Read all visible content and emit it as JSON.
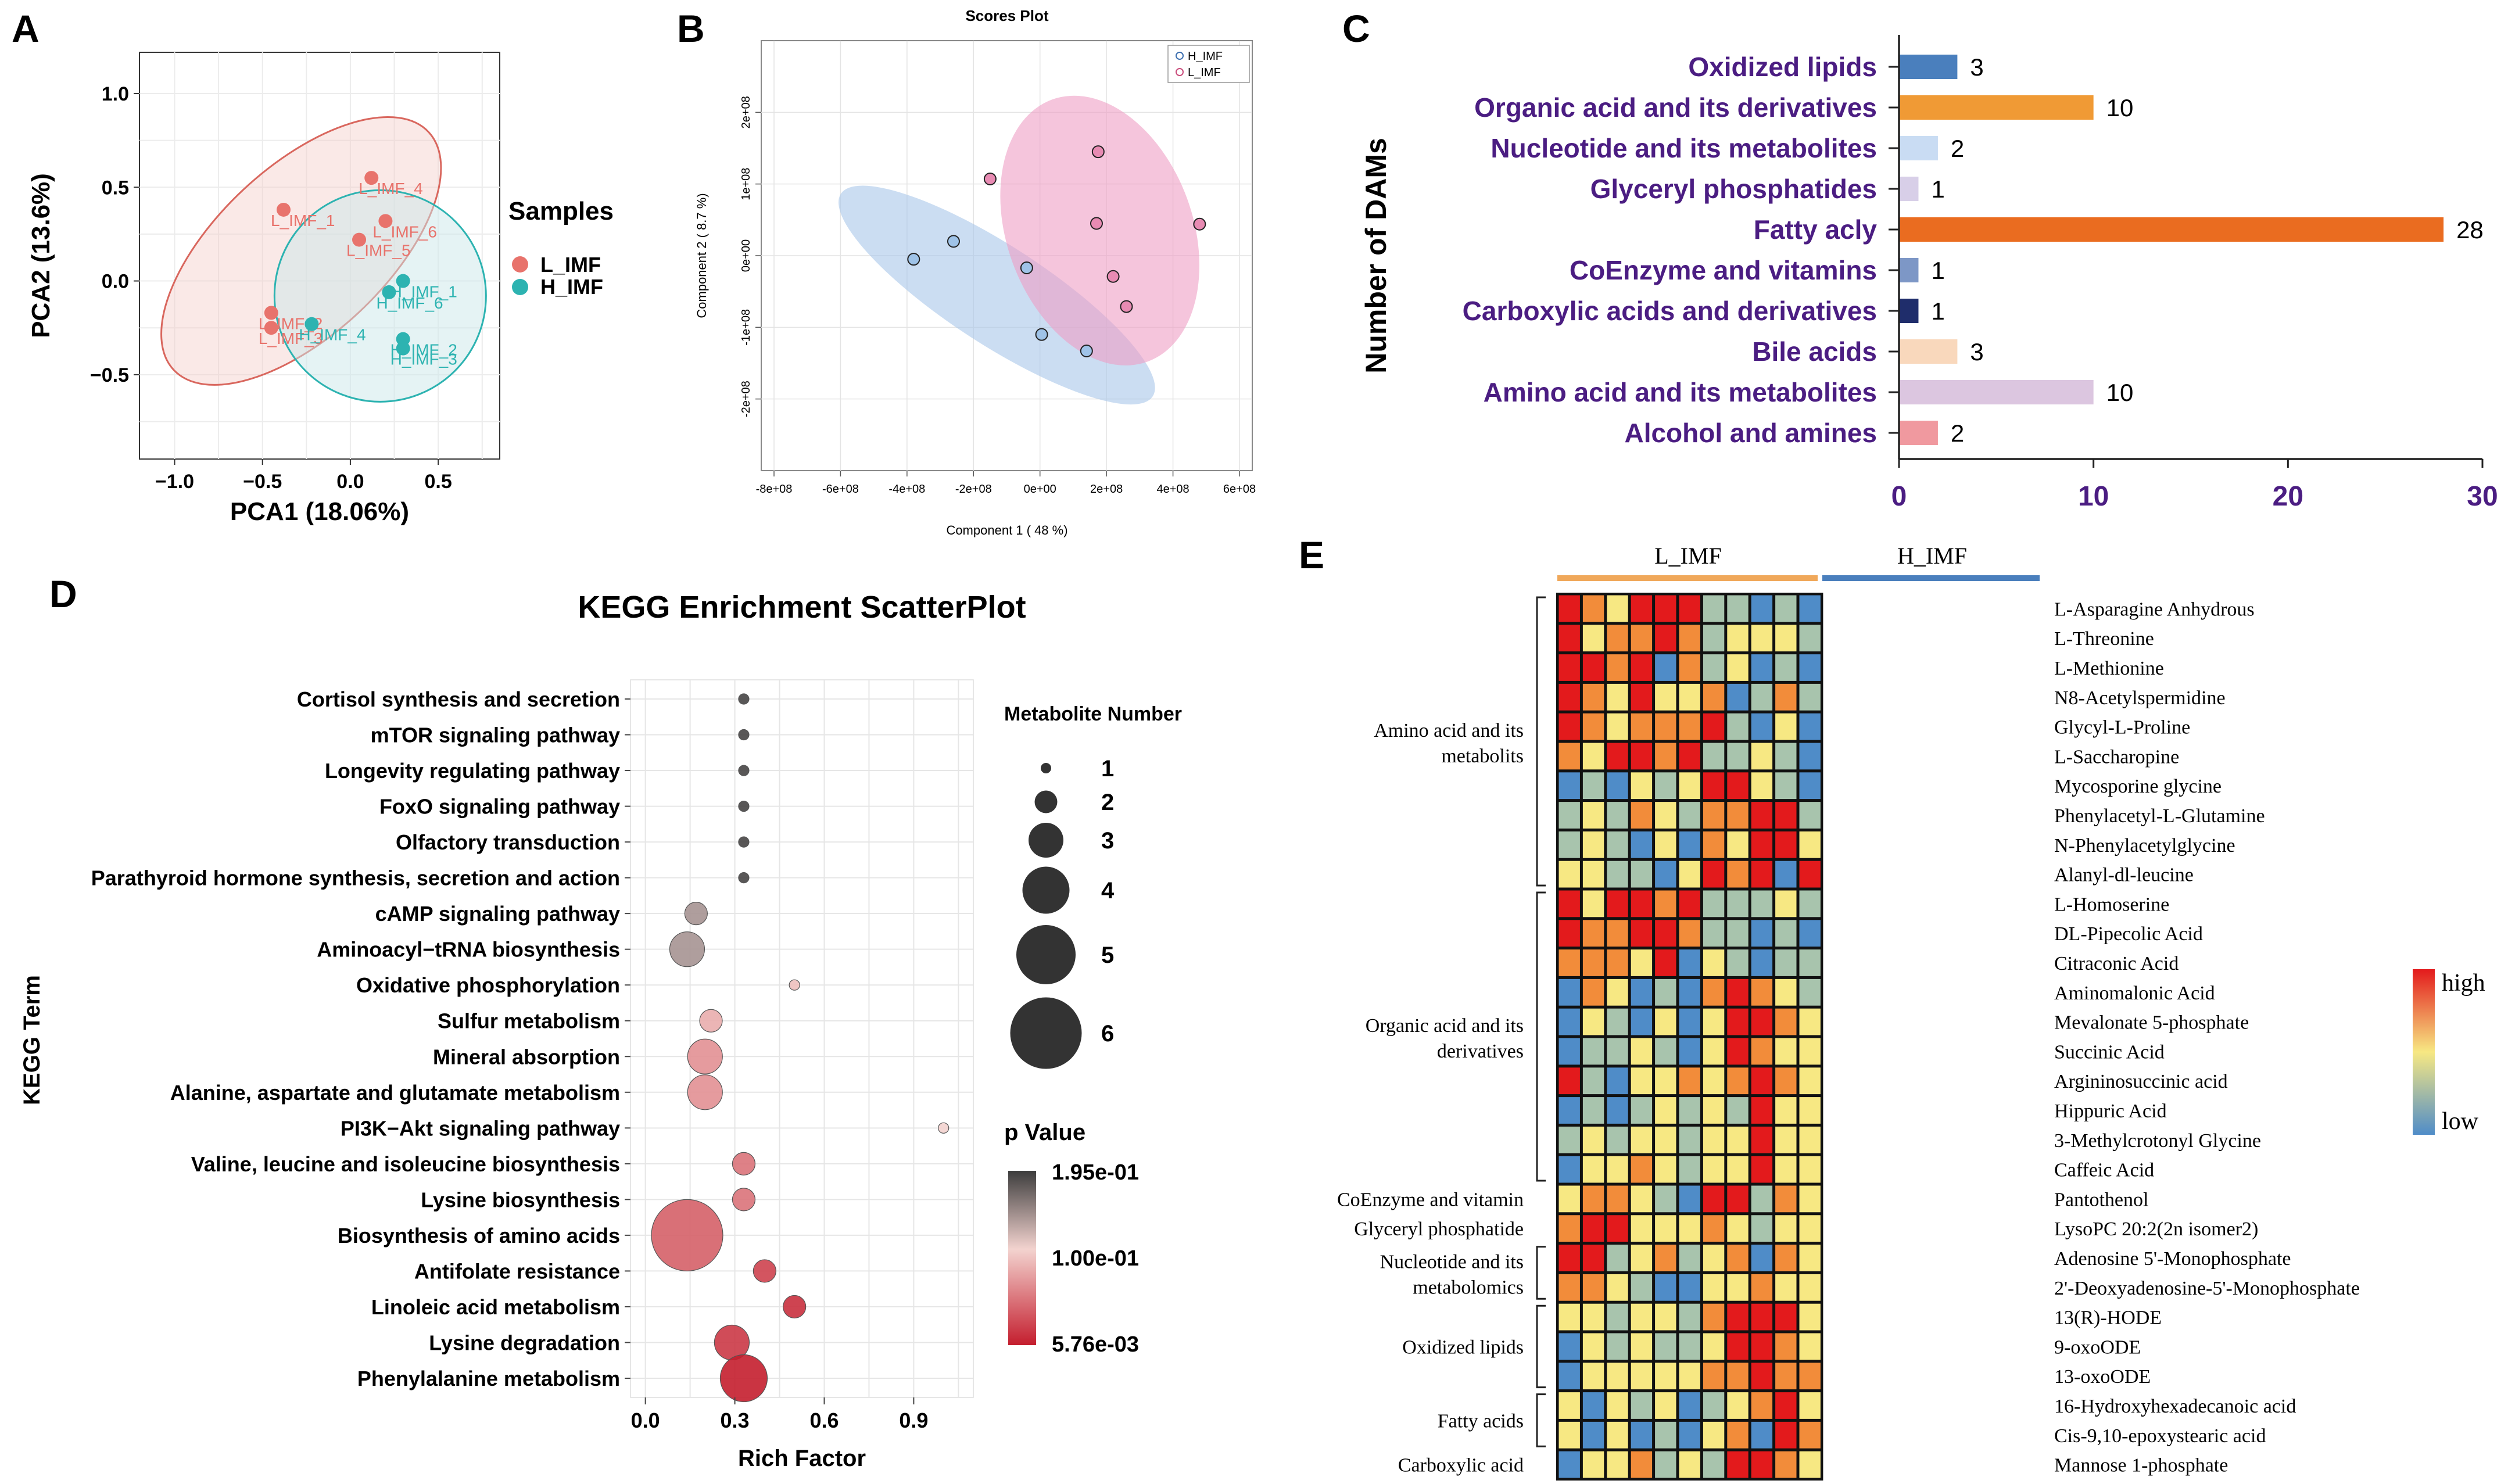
{
  "panel_labels": [
    "A",
    "B",
    "C",
    "D",
    "E"
  ],
  "chart_data": [
    {
      "panel": "A",
      "type": "scatter",
      "xlabel": "PCA1 (18.06%)",
      "ylabel": "PCA2 (13.6%)",
      "xlim": [
        -1.2,
        0.85
      ],
      "ylim": [
        -0.95,
        1.22
      ],
      "xticks": [
        "−1.0",
        "−0.5",
        "0.0",
        "0.5"
      ],
      "xtick_values": [
        -1.0,
        -0.5,
        0.0,
        0.5
      ],
      "yticks": [
        "1.0",
        "0.5",
        "0.0",
        "−0.5"
      ],
      "ytick_values": [
        1.0,
        0.5,
        0.0,
        -0.5
      ],
      "legend_title": "Samples",
      "series": [
        {
          "name": "L_IMF",
          "color": "#e8736c",
          "points": [
            {
              "label": "L_IMF_1",
              "x": -0.38,
              "y": 0.38
            },
            {
              "label": "L_IMF_4",
              "x": 0.12,
              "y": 0.55
            },
            {
              "label": "L_IMF_6",
              "x": 0.2,
              "y": 0.32
            },
            {
              "label": "L_IMF_5",
              "x": 0.05,
              "y": 0.22
            },
            {
              "label": "L_IMF_2",
              "x": -0.45,
              "y": -0.17
            },
            {
              "label": "L_IMF_3",
              "x": -0.45,
              "y": -0.25
            }
          ]
        },
        {
          "name": "H_IMF",
          "color": "#2db3b1",
          "points": [
            {
              "label": "H_IMF_1",
              "x": 0.3,
              "y": 0.0
            },
            {
              "label": "H_IMF_6",
              "x": 0.22,
              "y": -0.06
            },
            {
              "label": "H_IMF_4",
              "x": -0.22,
              "y": -0.23
            },
            {
              "label": "H_IMF_2",
              "x": 0.3,
              "y": -0.31
            },
            {
              "label": "H_IMF_3",
              "x": 0.3,
              "y": -0.36
            }
          ]
        }
      ]
    },
    {
      "panel": "B",
      "type": "scatter",
      "title": "Scores Plot",
      "xlabel": "Component 1 ( 48 %)",
      "ylabel": "Component 2 ( 8.7 %)",
      "xlim": [
        -800000000.0,
        600000000.0
      ],
      "ylim": [
        -300000000.0,
        300000000.0
      ],
      "xticks": [
        "-8e+08",
        "-6e+08",
        "-4e+08",
        "-2e+08",
        "0e+00",
        "2e+08",
        "4e+08",
        "6e+08"
      ],
      "xtick_values": [
        -800000000.0,
        -600000000.0,
        -400000000.0,
        -200000000.0,
        0,
        200000000.0,
        400000000.0,
        600000000.0
      ],
      "yticks": [
        "2e+08",
        "1e+08",
        "0e+00",
        "-1e+08",
        "-2e+08"
      ],
      "ytick_values": [
        200000000.0,
        100000000.0,
        0,
        -100000000.0,
        -200000000.0
      ],
      "series": [
        {
          "name": "H_IMF",
          "color": "#3d6fb0",
          "points": [
            [
              -380000000.0,
              -5000000.0
            ],
            [
              -260000000.0,
              20000000.0
            ],
            [
              -40000000.0,
              -17000000.0
            ],
            [
              5000000.0,
              -110000000.0
            ],
            [
              140000000.0,
              -133000000.0
            ]
          ]
        },
        {
          "name": "L_IMF",
          "color": "#c94a7a",
          "points": [
            [
              -150000000.0,
              107000000.0
            ],
            [
              175000000.0,
              145000000.0
            ],
            [
              170000000.0,
              45000000.0
            ],
            [
              480000000.0,
              44000000.0
            ],
            [
              220000000.0,
              -29000000.0
            ],
            [
              260000000.0,
              -71000000.0
            ]
          ]
        }
      ]
    },
    {
      "panel": "C",
      "type": "bar",
      "orientation": "horizontal",
      "ylabel": "Number of DAMs",
      "xlim": [
        0,
        30
      ],
      "xticks": [
        "0",
        "10",
        "20",
        "30"
      ],
      "xtick_values": [
        0,
        10,
        20,
        30
      ],
      "categories": [
        "Oxidized lipids",
        "Organic acid and  its derivatives",
        "Nucleotide and  its metabolites",
        "Glyceryl phosphatides",
        "Fatty acly",
        "CoEnzyme and vitamins",
        "Carboxylic acids and derivatives",
        "Bile acids",
        "Amino acid  and its metabolites",
        "Alcohol and amines"
      ],
      "values": [
        3,
        10,
        2,
        1,
        28,
        1,
        1,
        3,
        10,
        2
      ],
      "colors": [
        "#4a7fbd",
        "#f09a35",
        "#c9dcf3",
        "#d8cfe8",
        "#ea6c20",
        "#7d97c6",
        "#1f2d6b",
        "#f9d8bc",
        "#dcc6e0",
        "#f0999f"
      ]
    },
    {
      "panel": "D",
      "type": "scatter",
      "title": "KEGG Enrichment ScatterPlot",
      "xlabel": "Rich Factor",
      "ylabel": "KEGG Term",
      "xlim": [
        -0.05,
        1.1
      ],
      "xticks": [
        "0.0",
        "0.3",
        "0.6",
        "0.9"
      ],
      "xtick_values": [
        0.0,
        0.3,
        0.6,
        0.9
      ],
      "size_legend_title": "Metabolite Number",
      "size_legend": [
        "1",
        "2",
        "3",
        "4",
        "5",
        "6"
      ],
      "color_legend_title": "p Value",
      "color_legend_labels": [
        "1.95e-01",
        "1.00e-01",
        "5.76e-03"
      ],
      "terms": [
        "Cortisol synthesis and secretion",
        "mTOR signaling pathway",
        "Longevity regulating pathway",
        "FoxO signaling pathway",
        "Olfactory transduction",
        "Parathyroid hormone synthesis, secretion and action",
        "cAMP signaling pathway",
        "Aminoacyl−tRNA biosynthesis",
        "Oxidative phosphorylation",
        "Sulfur metabolism",
        "Mineral absorption",
        "Alanine, aspartate and glutamate metabolism",
        "PI3K−Akt signaling pathway",
        "Valine, leucine and isoleucine biosynthesis",
        "Lysine biosynthesis",
        "Biosynthesis of amino acids",
        "Antifolate resistance",
        "Linoleic acid metabolism",
        "Lysine degradation",
        "Phenylalanine metabolism"
      ],
      "rich_factor": [
        0.33,
        0.33,
        0.33,
        0.33,
        0.33,
        0.33,
        0.17,
        0.14,
        0.5,
        0.22,
        0.2,
        0.2,
        1.0,
        0.33,
        0.33,
        0.14,
        0.4,
        0.5,
        0.29,
        0.33
      ],
      "count": [
        1,
        1,
        1,
        1,
        1,
        1,
        2,
        3,
        1,
        2,
        3,
        3,
        1,
        2,
        2,
        6,
        2,
        2,
        3,
        4
      ],
      "p_value": [
        0.19,
        0.19,
        0.19,
        0.19,
        0.19,
        0.19,
        0.14,
        0.14,
        0.09,
        0.08,
        0.065,
        0.065,
        0.1,
        0.05,
        0.05,
        0.04,
        0.025,
        0.015,
        0.02,
        0.006
      ]
    },
    {
      "panel": "E",
      "type": "heatmap",
      "group_labels": [
        "L_IMF",
        "H_IMF"
      ],
      "group_colors": [
        "#f0a85a",
        "#4a7fbd"
      ],
      "legend_high": "high",
      "legend_low": "low",
      "rows": [
        "L-Asparagine Anhydrous",
        "L-Threonine",
        "L-Methionine",
        "N8-Acetylspermidine",
        "Glycyl-L-Proline",
        "L-Saccharopine",
        "Mycosporine glycine",
        "Phenylacetyl-L-Glutamine",
        "N-Phenylacetylglycine",
        "Alanyl-dl-leucine",
        "L-Homoserine",
        "DL-Pipecolic Acid",
        "Citraconic Acid",
        "Aminomalonic Acid",
        "Mevalonate 5-phosphate",
        "Succinic Acid",
        "Argininosuccinic acid",
        "Hippuric Acid",
        "3-Methylcrotonyl Glycine",
        "Caffeic Acid",
        "Pantothenol",
        "LysoPC 20:2(2n isomer2)",
        "Adenosine 5'-Monophosphate",
        "2'-Deoxyadenosine-5'-Monophosphate",
        "13(R)-HODE",
        "9-oxoODE",
        "13-oxoODE",
        "16-Hydroxyhexadecanoic acid",
        "Cis-9,10-epoxystearic acid",
        "Mannose 1-phosphate"
      ],
      "row_groups": [
        {
          "label1": "Amino acid and its",
          "label2": "metabolits",
          "start": 0,
          "end": 9
        },
        {
          "label1": "Organic acid and its",
          "label2": "derivatives",
          "start": 10,
          "end": 19
        },
        {
          "label1": "CoEnzyme and vitamin",
          "label2": "",
          "start": 20,
          "end": 20
        },
        {
          "label1": "Glyceryl phosphatide",
          "label2": "",
          "start": 21,
          "end": 21
        },
        {
          "label1": "Nucleotide and its",
          "label2": "metabolomics",
          "start": 22,
          "end": 23
        },
        {
          "label1": "Oxidized lipids",
          "label2": "",
          "start": 24,
          "end": 26
        },
        {
          "label1": "Fatty acids",
          "label2": "",
          "start": 27,
          "end": 28
        },
        {
          "label1": "Carboxylic acid",
          "label2": "",
          "start": 29,
          "end": 29
        }
      ],
      "values": [
        [
          5,
          4,
          3,
          5,
          5,
          5,
          2,
          2,
          1,
          2,
          1
        ],
        [
          5,
          3,
          4,
          4,
          5,
          4,
          2,
          3,
          3,
          3,
          2
        ],
        [
          5,
          5,
          4,
          5,
          1,
          4,
          2,
          3,
          1,
          2,
          1
        ],
        [
          5,
          4,
          3,
          5,
          3,
          3,
          4,
          1,
          2,
          4,
          2
        ],
        [
          5,
          4,
          3,
          4,
          4,
          4,
          5,
          2,
          1,
          3,
          1
        ],
        [
          4,
          3,
          5,
          5,
          4,
          5,
          2,
          2,
          3,
          2,
          1
        ],
        [
          1,
          2,
          1,
          3,
          2,
          3,
          5,
          5,
          3,
          2,
          1
        ],
        [
          2,
          3,
          2,
          4,
          3,
          2,
          4,
          4,
          5,
          5,
          2
        ],
        [
          2,
          3,
          2,
          1,
          3,
          1,
          4,
          3,
          5,
          5,
          3
        ],
        [
          3,
          3,
          2,
          2,
          1,
          3,
          5,
          4,
          5,
          1,
          5
        ],
        [
          5,
          3,
          5,
          5,
          4,
          5,
          2,
          2,
          2,
          3,
          2
        ],
        [
          5,
          4,
          4,
          5,
          5,
          4,
          2,
          2,
          1,
          2,
          1
        ],
        [
          4,
          4,
          4,
          3,
          5,
          1,
          3,
          2,
          1,
          2,
          2
        ],
        [
          1,
          4,
          3,
          1,
          2,
          1,
          4,
          5,
          4,
          3,
          2
        ],
        [
          1,
          3,
          2,
          1,
          3,
          1,
          3,
          5,
          5,
          4,
          3
        ],
        [
          1,
          2,
          2,
          3,
          2,
          1,
          3,
          5,
          4,
          3,
          3
        ],
        [
          5,
          2,
          1,
          3,
          3,
          4,
          3,
          4,
          5,
          4,
          3
        ],
        [
          1,
          2,
          1,
          2,
          3,
          2,
          3,
          2,
          5,
          3,
          3
        ],
        [
          2,
          3,
          2,
          3,
          3,
          2,
          3,
          3,
          5,
          3,
          3
        ],
        [
          1,
          3,
          3,
          4,
          3,
          2,
          3,
          3,
          5,
          3,
          3
        ],
        [
          3,
          4,
          4,
          3,
          2,
          1,
          5,
          5,
          2,
          4,
          3
        ],
        [
          4,
          5,
          5,
          3,
          3,
          3,
          4,
          3,
          2,
          3,
          3
        ],
        [
          5,
          5,
          2,
          3,
          4,
          2,
          3,
          4,
          1,
          4,
          3
        ],
        [
          4,
          4,
          3,
          2,
          1,
          1,
          3,
          3,
          4,
          3,
          3
        ],
        [
          3,
          3,
          2,
          3,
          3,
          2,
          4,
          5,
          5,
          5,
          3
        ],
        [
          1,
          3,
          2,
          3,
          2,
          2,
          3,
          5,
          5,
          4,
          3
        ],
        [
          1,
          3,
          3,
          3,
          3,
          3,
          4,
          4,
          5,
          4,
          4
        ],
        [
          3,
          1,
          3,
          2,
          3,
          1,
          2,
          3,
          4,
          5,
          3
        ],
        [
          3,
          1,
          3,
          1,
          2,
          1,
          3,
          4,
          1,
          5,
          4
        ],
        [
          1,
          3,
          3,
          4,
          2,
          3,
          2,
          5,
          5,
          4,
          3
        ]
      ]
    }
  ]
}
